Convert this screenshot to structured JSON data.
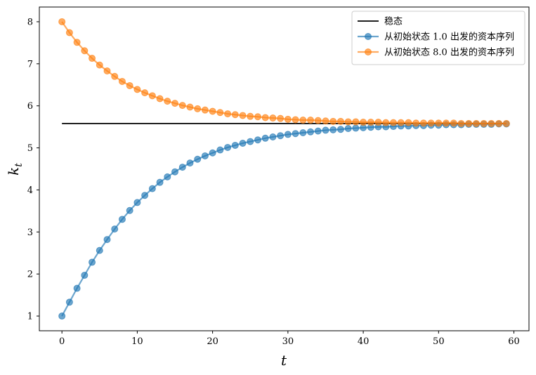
{
  "chart_data": {
    "type": "line",
    "xlabel": "t",
    "ylabel": "k_t",
    "xlim": [
      -3,
      62
    ],
    "ylim": [
      0.65,
      8.35
    ],
    "x_ticks": [
      0,
      10,
      20,
      30,
      40,
      50,
      60
    ],
    "y_ticks": [
      1,
      2,
      3,
      4,
      5,
      6,
      7,
      8
    ],
    "legend_position": "top-right",
    "steady_state": {
      "name": "稳态",
      "value": 5.58,
      "x_range": [
        0,
        59
      ],
      "color": "#000000"
    },
    "series": [
      {
        "name": "从初始状态 1.0 出发的资本序列",
        "color": "#1f77b4",
        "x": [
          0,
          1,
          2,
          3,
          4,
          5,
          6,
          7,
          8,
          9,
          10,
          11,
          12,
          13,
          14,
          15,
          16,
          17,
          18,
          19,
          20,
          21,
          22,
          23,
          24,
          25,
          26,
          27,
          28,
          29,
          30,
          31,
          32,
          33,
          34,
          35,
          36,
          37,
          38,
          39,
          40,
          41,
          42,
          43,
          44,
          45,
          46,
          47,
          48,
          49,
          50,
          51,
          52,
          53,
          54,
          55,
          56,
          57,
          58,
          59
        ],
        "values": [
          1.0,
          1.33,
          1.66,
          1.97,
          2.28,
          2.56,
          2.82,
          3.07,
          3.3,
          3.51,
          3.7,
          3.87,
          4.03,
          4.18,
          4.31,
          4.43,
          4.54,
          4.64,
          4.73,
          4.81,
          4.88,
          4.95,
          5.01,
          5.06,
          5.11,
          5.15,
          5.19,
          5.23,
          5.26,
          5.29,
          5.32,
          5.34,
          5.36,
          5.38,
          5.4,
          5.42,
          5.43,
          5.44,
          5.46,
          5.47,
          5.48,
          5.49,
          5.5,
          5.5,
          5.51,
          5.52,
          5.52,
          5.53,
          5.53,
          5.54,
          5.54,
          5.55,
          5.55,
          5.55,
          5.56,
          5.56,
          5.56,
          5.56,
          5.57,
          5.57
        ]
      },
      {
        "name": "从初始状态 8.0 出发的资本序列",
        "color": "#ff7f0e",
        "x": [
          0,
          1,
          2,
          3,
          4,
          5,
          6,
          7,
          8,
          9,
          10,
          11,
          12,
          13,
          14,
          15,
          16,
          17,
          18,
          19,
          20,
          21,
          22,
          23,
          24,
          25,
          26,
          27,
          28,
          29,
          30,
          31,
          32,
          33,
          34,
          35,
          36,
          37,
          38,
          39,
          40,
          41,
          42,
          43,
          44,
          45,
          46,
          47,
          48,
          49,
          50,
          51,
          52,
          53,
          54,
          55,
          56,
          57,
          58,
          59
        ],
        "values": [
          8.0,
          7.74,
          7.51,
          7.31,
          7.13,
          6.97,
          6.83,
          6.7,
          6.58,
          6.48,
          6.39,
          6.31,
          6.24,
          6.17,
          6.11,
          6.06,
          6.01,
          5.97,
          5.93,
          5.9,
          5.87,
          5.84,
          5.81,
          5.79,
          5.77,
          5.75,
          5.74,
          5.72,
          5.71,
          5.7,
          5.68,
          5.67,
          5.66,
          5.66,
          5.65,
          5.64,
          5.63,
          5.63,
          5.62,
          5.62,
          5.61,
          5.61,
          5.61,
          5.6,
          5.6,
          5.6,
          5.6,
          5.59,
          5.59,
          5.59,
          5.59,
          5.59,
          5.59,
          5.58,
          5.58,
          5.58,
          5.58,
          5.58,
          5.58,
          5.58
        ]
      }
    ]
  }
}
